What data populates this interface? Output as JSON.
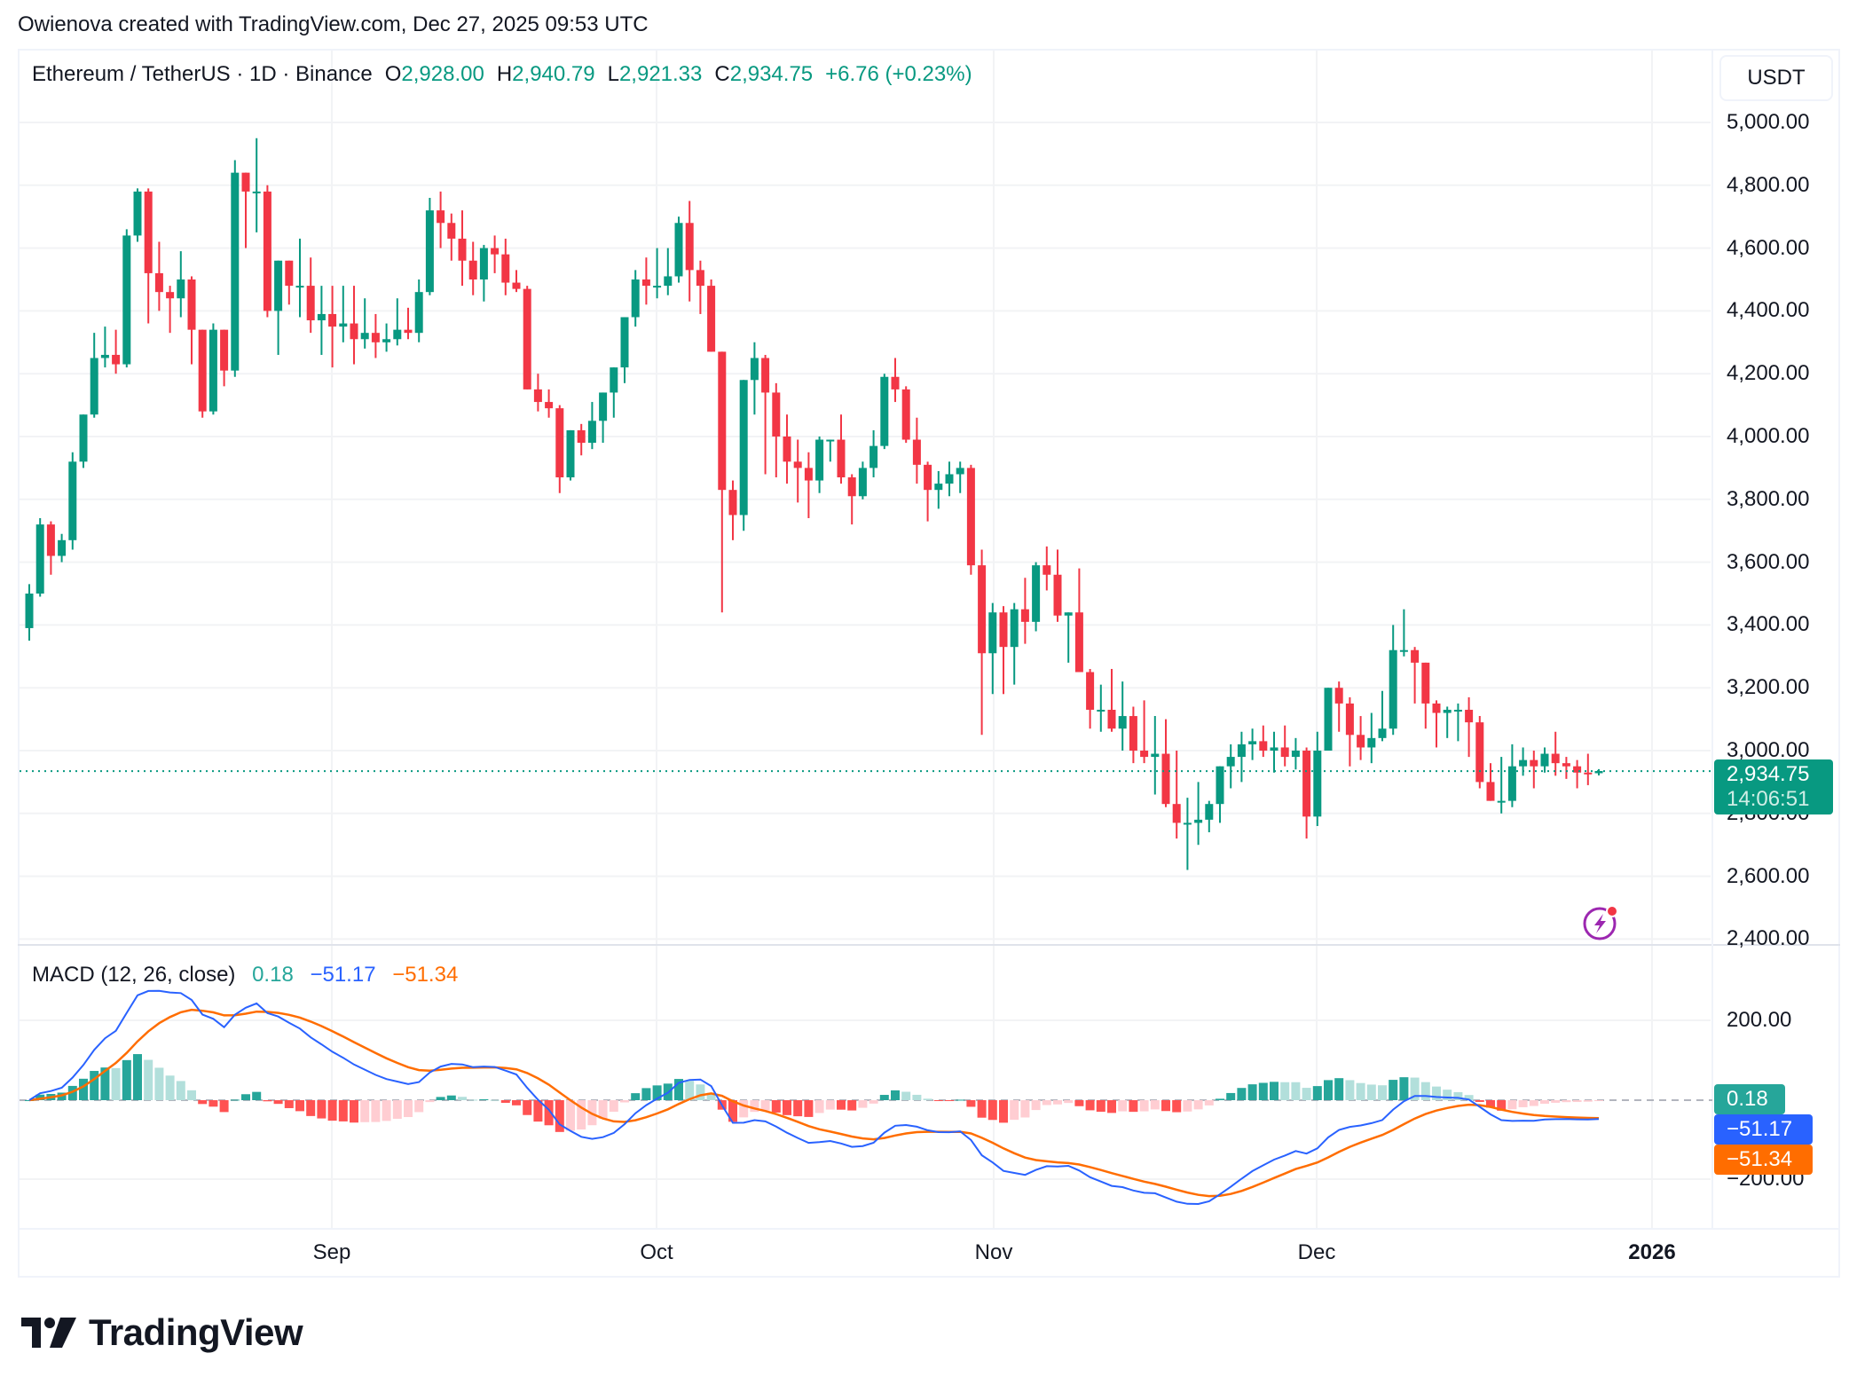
{
  "credit": "Owienova created with TradingView.com, Dec 27, 2025 09:53 UTC",
  "header": {
    "symbol": "Ethereum / TetherUS · 1D · Binance",
    "open_label": "O",
    "open": "2,928.00",
    "high_label": "H",
    "high": "2,940.79",
    "low_label": "L",
    "low": "2,921.33",
    "close_label": "C",
    "close": "2,934.75",
    "change": "+6.76 (+0.23%)"
  },
  "currency_button": "USDT",
  "price_axis": {
    "labels": [
      "5,000.00",
      "4,800.00",
      "4,600.00",
      "4,400.00",
      "4,200.00",
      "4,000.00",
      "3,800.00",
      "3,600.00",
      "3,400.00",
      "3,200.00",
      "3,000.00",
      "2,800.00",
      "2,600.00",
      "2,400.00"
    ]
  },
  "last_price_badge": {
    "price": "2,934.75",
    "countdown": "14:06:51",
    "color": "#089981"
  },
  "macd": {
    "title": "MACD (12, 26, close)",
    "histogram_value": "0.18",
    "macd_value": "−51.17",
    "signal_value": "−51.34",
    "axis_labels": [
      "200.00",
      "−200.00"
    ],
    "colors": {
      "histogram": "#26a69a",
      "macd": "#2962ff",
      "signal": "#ff6d00"
    }
  },
  "time_axis": {
    "labels": [
      "Sep",
      "Oct",
      "Nov",
      "Dec",
      "2026"
    ]
  },
  "footer": {
    "brand": "TradingView"
  },
  "colors": {
    "up": "#089981",
    "down": "#f23645",
    "grid": "#f2f3f5"
  },
  "chart_data": {
    "type": "candlestick",
    "title": "Ethereum / TetherUS · 1D · Binance",
    "xlabel": "",
    "ylabel": "USDT",
    "ylim": [
      2400,
      5000
    ],
    "x_ticks": [
      "Sep",
      "Oct",
      "Nov",
      "Dec",
      "2026"
    ],
    "ohlc_fields": [
      "open",
      "high",
      "low",
      "close"
    ],
    "candles": [
      [
        3390,
        3530,
        3350,
        3500
      ],
      [
        3500,
        3740,
        3490,
        3720
      ],
      [
        3720,
        3730,
        3560,
        3620
      ],
      [
        3620,
        3690,
        3600,
        3670
      ],
      [
        3670,
        3950,
        3640,
        3920
      ],
      [
        3920,
        4060,
        3900,
        4070
      ],
      [
        4070,
        4330,
        4060,
        4250
      ],
      [
        4250,
        4350,
        4220,
        4260
      ],
      [
        4260,
        4340,
        4200,
        4230
      ],
      [
        4230,
        4660,
        4220,
        4640
      ],
      [
        4640,
        4790,
        4620,
        4780
      ],
      [
        4780,
        4790,
        4360,
        4520
      ],
      [
        4520,
        4620,
        4400,
        4460
      ],
      [
        4460,
        4480,
        4330,
        4440
      ],
      [
        4440,
        4590,
        4380,
        4500
      ],
      [
        4500,
        4510,
        4230,
        4340
      ],
      [
        4340,
        4340,
        4060,
        4080
      ],
      [
        4080,
        4360,
        4070,
        4340
      ],
      [
        4340,
        4340,
        4160,
        4210
      ],
      [
        4210,
        4880,
        4190,
        4840
      ],
      [
        4840,
        4840,
        4600,
        4780
      ],
      [
        4780,
        4950,
        4650,
        4780
      ],
      [
        4780,
        4800,
        4380,
        4400
      ],
      [
        4400,
        4560,
        4260,
        4560
      ],
      [
        4560,
        4560,
        4420,
        4480
      ],
      [
        4480,
        4630,
        4380,
        4480
      ],
      [
        4480,
        4570,
        4330,
        4370
      ],
      [
        4370,
        4480,
        4260,
        4390
      ],
      [
        4390,
        4480,
        4220,
        4350
      ],
      [
        4350,
        4480,
        4300,
        4360
      ],
      [
        4360,
        4480,
        4230,
        4310
      ],
      [
        4310,
        4440,
        4280,
        4330
      ],
      [
        4330,
        4390,
        4250,
        4300
      ],
      [
        4300,
        4360,
        4270,
        4310
      ],
      [
        4310,
        4440,
        4290,
        4340
      ],
      [
        4340,
        4410,
        4310,
        4330
      ],
      [
        4330,
        4500,
        4300,
        4460
      ],
      [
        4460,
        4760,
        4450,
        4720
      ],
      [
        4720,
        4780,
        4600,
        4680
      ],
      [
        4680,
        4710,
        4560,
        4630
      ],
      [
        4630,
        4720,
        4480,
        4560
      ],
      [
        4560,
        4620,
        4450,
        4500
      ],
      [
        4500,
        4610,
        4430,
        4600
      ],
      [
        4600,
        4640,
        4520,
        4580
      ],
      [
        4580,
        4630,
        4450,
        4490
      ],
      [
        4490,
        4530,
        4460,
        4470
      ],
      [
        4470,
        4480,
        4270,
        4150
      ],
      [
        4150,
        4200,
        4080,
        4110
      ],
      [
        4110,
        4150,
        4060,
        4090
      ],
      [
        4090,
        4100,
        3820,
        3870
      ],
      [
        3870,
        4010,
        3860,
        4020
      ],
      [
        4020,
        4040,
        3940,
        3980
      ],
      [
        3980,
        4110,
        3960,
        4050
      ],
      [
        4050,
        4100,
        3980,
        4140
      ],
      [
        4140,
        4220,
        4060,
        4220
      ],
      [
        4220,
        4380,
        4170,
        4380
      ],
      [
        4380,
        4530,
        4350,
        4500
      ],
      [
        4500,
        4570,
        4420,
        4480
      ],
      [
        4480,
        4600,
        4440,
        4480
      ],
      [
        4480,
        4600,
        4450,
        4510
      ],
      [
        4510,
        4700,
        4490,
        4680
      ],
      [
        4680,
        4750,
        4430,
        4530
      ],
      [
        4530,
        4560,
        4390,
        4480
      ],
      [
        4480,
        4500,
        4350,
        4270
      ],
      [
        4270,
        4270,
        3440,
        3830
      ],
      [
        3830,
        3860,
        3670,
        3750
      ],
      [
        3750,
        4180,
        3700,
        4180
      ],
      [
        4180,
        4300,
        4070,
        4250
      ],
      [
        4250,
        4260,
        3880,
        4140
      ],
      [
        4140,
        4170,
        3870,
        4000
      ],
      [
        4000,
        4070,
        3850,
        3920
      ],
      [
        3920,
        3990,
        3790,
        3900
      ],
      [
        3900,
        3950,
        3740,
        3860
      ],
      [
        3860,
        4000,
        3820,
        3990
      ],
      [
        3990,
        3990,
        3920,
        3990
      ],
      [
        3990,
        4070,
        3850,
        3870
      ],
      [
        3870,
        3880,
        3720,
        3810
      ],
      [
        3810,
        3920,
        3800,
        3900
      ],
      [
        3900,
        4020,
        3870,
        3970
      ],
      [
        3970,
        4200,
        3960,
        4190
      ],
      [
        4190,
        4250,
        4110,
        4150
      ],
      [
        4150,
        4160,
        3980,
        3990
      ],
      [
        3990,
        4060,
        3850,
        3910
      ],
      [
        3910,
        3920,
        3730,
        3830
      ],
      [
        3830,
        3890,
        3770,
        3850
      ],
      [
        3850,
        3920,
        3810,
        3880
      ],
      [
        3880,
        3920,
        3820,
        3900
      ],
      [
        3900,
        3910,
        3560,
        3590
      ],
      [
        3590,
        3640,
        3050,
        3310
      ],
      [
        3310,
        3470,
        3180,
        3440
      ],
      [
        3440,
        3460,
        3180,
        3330
      ],
      [
        3330,
        3470,
        3210,
        3450
      ],
      [
        3450,
        3550,
        3340,
        3410
      ],
      [
        3410,
        3600,
        3380,
        3590
      ],
      [
        3590,
        3650,
        3510,
        3560
      ],
      [
        3560,
        3640,
        3410,
        3430
      ],
      [
        3430,
        3440,
        3280,
        3440
      ],
      [
        3440,
        3580,
        3260,
        3250
      ],
      [
        3250,
        3260,
        3070,
        3130
      ],
      [
        3130,
        3210,
        3060,
        3130
      ],
      [
        3130,
        3260,
        3060,
        3070
      ],
      [
        3070,
        3220,
        3000,
        3110
      ],
      [
        3110,
        3140,
        2960,
        3000
      ],
      [
        3000,
        3160,
        2960,
        2980
      ],
      [
        2980,
        3110,
        2860,
        2990
      ],
      [
        2990,
        3100,
        2820,
        2830
      ],
      [
        2830,
        3000,
        2720,
        2770
      ],
      [
        2770,
        2850,
        2620,
        2770
      ],
      [
        2770,
        2900,
        2700,
        2780
      ],
      [
        2780,
        2840,
        2740,
        2830
      ],
      [
        2830,
        2920,
        2770,
        2950
      ],
      [
        2950,
        3020,
        2880,
        2980
      ],
      [
        2980,
        3060,
        2900,
        3020
      ],
      [
        3020,
        3070,
        2970,
        3030
      ],
      [
        3030,
        3080,
        2980,
        3000
      ],
      [
        3000,
        3060,
        2930,
        3010
      ],
      [
        3010,
        3080,
        2950,
        2980
      ],
      [
        2980,
        3040,
        2940,
        3000
      ],
      [
        3000,
        3010,
        2720,
        2790
      ],
      [
        2790,
        3060,
        2760,
        3000
      ],
      [
        3000,
        3180,
        3000,
        3200
      ],
      [
        3200,
        3220,
        3060,
        3150
      ],
      [
        3150,
        3170,
        2950,
        3050
      ],
      [
        3050,
        3110,
        2970,
        3010
      ],
      [
        3010,
        3120,
        2960,
        3040
      ],
      [
        3040,
        3190,
        3030,
        3070
      ],
      [
        3070,
        3400,
        3050,
        3320
      ],
      [
        3320,
        3450,
        3300,
        3320
      ],
      [
        3320,
        3330,
        3150,
        3280
      ],
      [
        3280,
        3240,
        3070,
        3150
      ],
      [
        3150,
        3160,
        3010,
        3120
      ],
      [
        3120,
        3140,
        3040,
        3130
      ],
      [
        3130,
        3150,
        3030,
        3130
      ],
      [
        3130,
        3170,
        2980,
        3090
      ],
      [
        3090,
        3110,
        2880,
        2900
      ],
      [
        2900,
        2960,
        2850,
        2840
      ],
      [
        2840,
        2980,
        2800,
        2840
      ],
      [
        2840,
        3020,
        2820,
        2950
      ],
      [
        2950,
        3010,
        2920,
        2970
      ],
      [
        2970,
        3000,
        2880,
        2950
      ],
      [
        2950,
        3010,
        2930,
        2990
      ],
      [
        2990,
        3060,
        2920,
        2960
      ],
      [
        2960,
        2980,
        2910,
        2950
      ],
      [
        2950,
        2970,
        2880,
        2930
      ],
      [
        2930,
        2990,
        2890,
        2928
      ],
      [
        2928,
        2941,
        2921,
        2935
      ]
    ],
    "macd_series": {
      "note": "approximate reading from indicator pane",
      "macd_end": -51.17,
      "signal_end": -51.34,
      "histogram_end": 0.18
    }
  }
}
